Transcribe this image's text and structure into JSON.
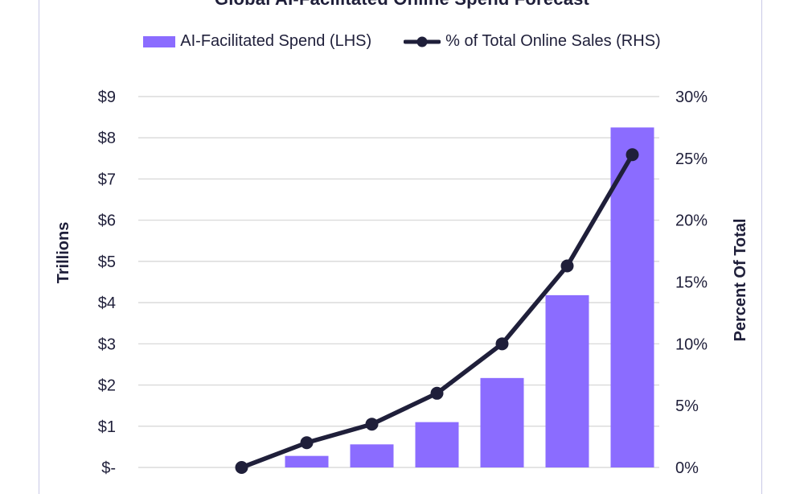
{
  "chart_data": {
    "type": "bar",
    "title": "Global AI-Facilitated Online Spend Forecast",
    "ylabel_left": "Trillions",
    "ylabel_right": "Percent Of Total",
    "left_ticks": [
      "$-",
      "$1",
      "$2",
      "$3",
      "$4",
      "$5",
      "$6",
      "$7",
      "$8",
      "$9"
    ],
    "right_ticks": [
      "0%",
      "5%",
      "10%",
      "15%",
      "20%",
      "25%",
      "30%"
    ],
    "ylim_left": [
      0,
      9
    ],
    "ylim_right": [
      0,
      30
    ],
    "grid": true,
    "legend_position": "top-center",
    "series": [
      {
        "name": "AI-Facilitated Spend (LHS)",
        "type": "bar",
        "axis": "left",
        "color": "#8b6cff",
        "values": [
          0,
          0,
          0.28,
          0.56,
          1.1,
          2.17,
          4.18,
          8.25
        ]
      },
      {
        "name": "% of Total Online Sales (RHS)",
        "type": "line",
        "axis": "right",
        "color": "#1f1f3a",
        "values": [
          null,
          0,
          2.0,
          3.5,
          6.0,
          10.0,
          16.3,
          25.3
        ]
      }
    ]
  }
}
